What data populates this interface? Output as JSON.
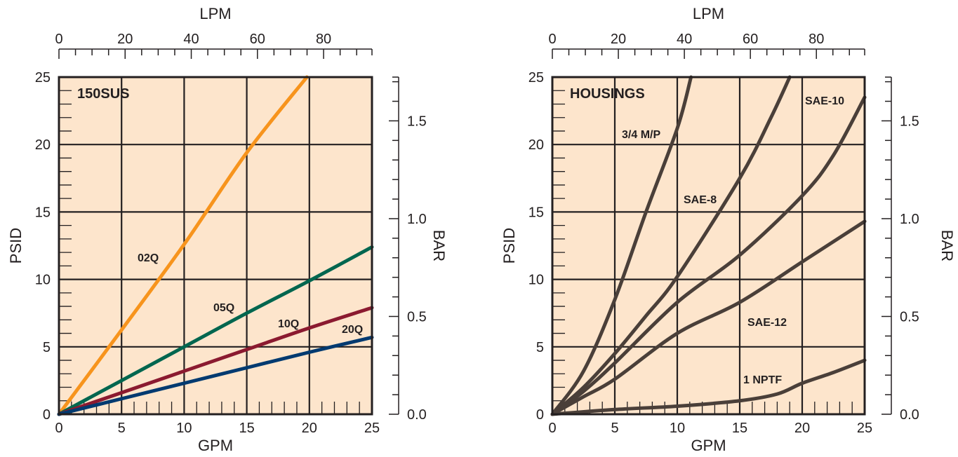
{
  "chart_data": [
    {
      "type": "line",
      "title": "150SUS",
      "xlabel": "GPM",
      "ylabel": "PSID",
      "x2label": "LPM",
      "y2label": "BAR",
      "xlim": [
        0,
        25
      ],
      "ylim": [
        0,
        25
      ],
      "x_ticks": [
        "0",
        "5",
        "10",
        "15",
        "20",
        "25"
      ],
      "y_ticks": [
        "0",
        "5",
        "10",
        "15",
        "20",
        "25"
      ],
      "x2_ticks": [
        "0",
        "20",
        "40",
        "60",
        "80"
      ],
      "y2_ticks": [
        "0.0",
        "0.5",
        "1.0",
        "1.5"
      ],
      "grid": true,
      "background_color": "#fde5cc",
      "series": [
        {
          "name": "02Q",
          "color": "#f7941d",
          "points": [
            [
              0,
              0
            ],
            [
              5,
              6.25
            ],
            [
              10,
              12.6
            ],
            [
              15,
              19.4
            ],
            [
              19.8,
              25
            ]
          ]
        },
        {
          "name": "05Q",
          "color": "#00664f",
          "points": [
            [
              0,
              0
            ],
            [
              5,
              2.5
            ],
            [
              10,
              5.0
            ],
            [
              15,
              7.5
            ],
            [
              20,
              9.9
            ],
            [
              25,
              12.4
            ]
          ]
        },
        {
          "name": "10Q",
          "color": "#8b1a30",
          "points": [
            [
              0,
              0
            ],
            [
              5,
              1.6
            ],
            [
              10,
              3.2
            ],
            [
              15,
              4.8
            ],
            [
              20,
              6.4
            ],
            [
              25,
              7.9
            ]
          ]
        },
        {
          "name": "20Q",
          "color": "#003a70",
          "points": [
            [
              0,
              0
            ],
            [
              5,
              1.15
            ],
            [
              10,
              2.3
            ],
            [
              15,
              3.45
            ],
            [
              20,
              4.6
            ],
            [
              25,
              5.7
            ]
          ]
        }
      ]
    },
    {
      "type": "line",
      "title": "HOUSINGS",
      "xlabel": "GPM",
      "ylabel": "PSID",
      "x2label": "LPM",
      "y2label": "BAR",
      "xlim": [
        0,
        25
      ],
      "ylim": [
        0,
        25
      ],
      "x_ticks": [
        "0",
        "5",
        "10",
        "15",
        "20",
        "25"
      ],
      "y_ticks": [
        "0",
        "5",
        "10",
        "15",
        "20",
        "25"
      ],
      "x2_ticks": [
        "0",
        "20",
        "40",
        "60",
        "80"
      ],
      "y2_ticks": [
        "0.0",
        "0.5",
        "1.0",
        "1.5"
      ],
      "grid": true,
      "background_color": "#fde5cc",
      "series": [
        {
          "name": "3/4 M/P",
          "color": "#4a3f39",
          "points": [
            [
              0,
              0
            ],
            [
              2.5,
              3.2
            ],
            [
              5,
              8.5
            ],
            [
              7.5,
              15
            ],
            [
              10,
              21.2
            ],
            [
              11.1,
              25
            ]
          ]
        },
        {
          "name": "SAE-8",
          "color": "#4a3f39",
          "points": [
            [
              0,
              0
            ],
            [
              2.5,
              2.0
            ],
            [
              5,
              4.5
            ],
            [
              7.5,
              7.3
            ],
            [
              10,
              10.2
            ],
            [
              15,
              17.5
            ],
            [
              17.5,
              22
            ],
            [
              19,
              25
            ]
          ]
        },
        {
          "name": "SAE-10",
          "color": "#4a3f39",
          "points": [
            [
              0,
              0
            ],
            [
              2.5,
              1.7
            ],
            [
              5,
              3.8
            ],
            [
              10,
              8.3
            ],
            [
              15,
              11.8
            ],
            [
              20,
              16.2
            ],
            [
              22.5,
              19.2
            ],
            [
              25,
              23.5
            ]
          ]
        },
        {
          "name": "SAE-12",
          "color": "#4a3f39",
          "points": [
            [
              0,
              0
            ],
            [
              2.5,
              1.3
            ],
            [
              5,
              2.6
            ],
            [
              10,
              6.0
            ],
            [
              15,
              8.3
            ],
            [
              20,
              11.3
            ],
            [
              25,
              14.3
            ]
          ]
        },
        {
          "name": "1 NPTF",
          "color": "#4a3f39",
          "points": [
            [
              0,
              0
            ],
            [
              5,
              0.35
            ],
            [
              10,
              0.6
            ],
            [
              15,
              1.0
            ],
            [
              18,
              1.5
            ],
            [
              20,
              2.3
            ],
            [
              22.5,
              3.1
            ],
            [
              25,
              4.0
            ]
          ]
        }
      ]
    }
  ]
}
